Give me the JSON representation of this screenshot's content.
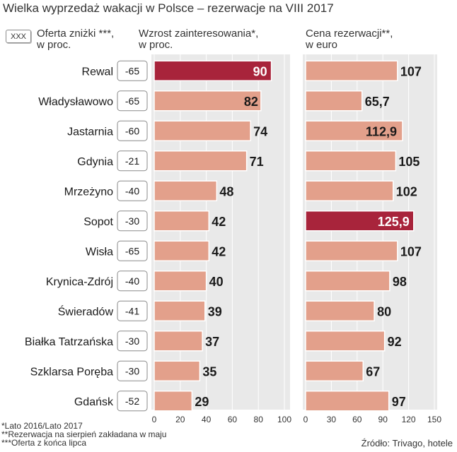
{
  "title": "Wielka wyprzedaż wakacji w Polsce – rezerwacje na VIII 2017",
  "legend": {
    "box_label": "XXX",
    "discount_line1": "Oferta zniżki ***,",
    "discount_line2": "w proc."
  },
  "footnotes": {
    "f1": "*Lato 2016/Lato 2017",
    "f2": "**Rezerwacja na sierpień zakładana w maju",
    "f3": "***Oferta z końca lipca"
  },
  "source": "Źródło: Trivago, hotele",
  "colors": {
    "bar": "#e3a08b",
    "highlight": "#a8243b",
    "panel": "#e9e9e9",
    "bar_edge": "#ffffff"
  },
  "chart_data": [
    {
      "type": "bar",
      "orientation": "horizontal",
      "title": "Wzrost zainteresowania*,",
      "subtitle": "w proc.",
      "categories": [
        "Rewal",
        "Władysławowo",
        "Jastarnia",
        "Gdynia",
        "Mrzeżyno",
        "Sopot",
        "Wisła",
        "Krynica-Zdrój",
        "Świeradów",
        "Białka Tatrzańska",
        "Szklarsa Poręba",
        "Gdańsk"
      ],
      "values": [
        90,
        82,
        74,
        71,
        48,
        42,
        42,
        40,
        39,
        37,
        35,
        29
      ],
      "value_labels": [
        "90",
        "82",
        "74",
        "71",
        "48",
        "42",
        "42",
        "40",
        "39",
        "37",
        "35",
        "29"
      ],
      "highlight_index": 0,
      "xlim": [
        0,
        100
      ],
      "ticks": [
        "0",
        "20",
        "40",
        "60",
        "80",
        "100"
      ],
      "extra_column": {
        "name": "Oferta zniżki ***, w proc.",
        "values": [
          "-65",
          "-65",
          "-60",
          "-21",
          "-40",
          "-30",
          "-65",
          "-40",
          "-41",
          "-30",
          "-30",
          "-52"
        ]
      }
    },
    {
      "type": "bar",
      "orientation": "horizontal",
      "title": "Cena rezerwacji**,",
      "subtitle": "w euro",
      "categories": [
        "Rewal",
        "Władysławowo",
        "Jastarnia",
        "Gdynia",
        "Mrzeżyno",
        "Sopot",
        "Wisła",
        "Krynica-Zdrój",
        "Świeradów",
        "Białka Tatrzańska",
        "Szklarsa Poręba",
        "Gdańsk"
      ],
      "values": [
        107,
        65.7,
        112.9,
        105,
        102,
        125.9,
        107,
        98,
        80,
        92,
        67,
        97
      ],
      "value_labels": [
        "107",
        "65,7",
        "112,9",
        "105",
        "102",
        "125,9",
        "107",
        "98",
        "80",
        "92",
        "67",
        "97"
      ],
      "highlight_index": 5,
      "xlim": [
        0,
        150
      ],
      "ticks": [
        "0",
        "30",
        "60",
        "90",
        "120",
        "150"
      ]
    }
  ]
}
